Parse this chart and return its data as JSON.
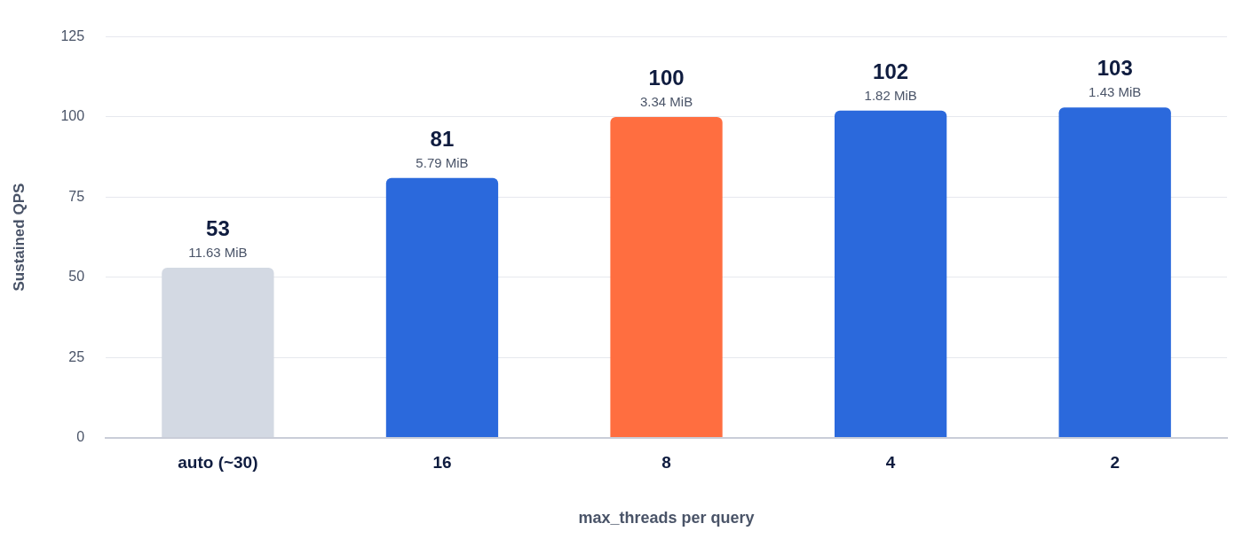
{
  "chart_data": {
    "type": "bar",
    "xlabel": "max_threads per query",
    "ylabel": "Sustained QPS",
    "categories": [
      "auto (~30)",
      "16",
      "8",
      "4",
      "2"
    ],
    "values": [
      53,
      81,
      100,
      102,
      103
    ],
    "colors": [
      "#d3d9e3",
      "#2b69dc",
      "#ff6e40",
      "#2b69dc",
      "#2b69dc"
    ],
    "ylim": [
      0,
      125
    ],
    "yticks": [
      0,
      25,
      50,
      75,
      100,
      125
    ],
    "grid": "y",
    "data_labels": true,
    "annotations": [
      {
        "text": "11.63 MiB",
        "x": "auto (~30)",
        "y": 53
      },
      {
        "text": "5.79 MiB",
        "x": "16",
        "y": 81
      },
      {
        "text": "3.34 MiB",
        "x": "8",
        "y": 100
      },
      {
        "text": "1.82 MiB",
        "x": "4",
        "y": 102
      },
      {
        "text": "1.43 MiB",
        "x": "2",
        "y": 103
      }
    ]
  }
}
